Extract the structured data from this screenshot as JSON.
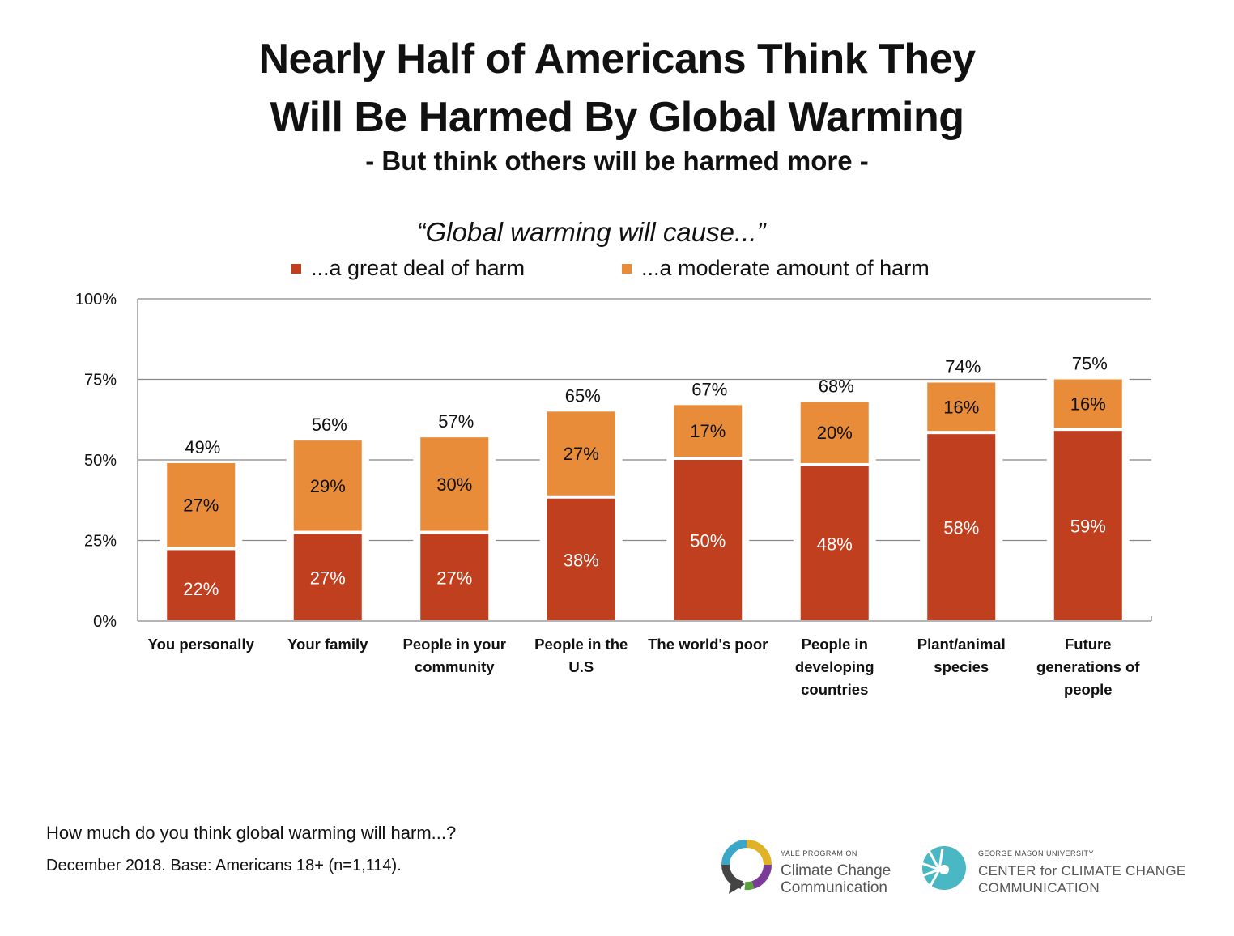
{
  "title_line1": "Nearly Half of Americans Think They",
  "title_line2": "Will Be Harmed By Global Warming",
  "subtitle": "- But think others will be harmed more -",
  "footnote_question": "How much do you think global warming will harm...?",
  "footnote_base": "December 2018. Base: Americans 18+ (n=1,114).",
  "logos": {
    "yale_small": "YALE PROGRAM ON",
    "yale_line1": "Climate Change",
    "yale_line2": "Communication",
    "gmu_small": "GEORGE MASON UNIVERSITY",
    "gmu_line1": "CENTER for CLIMATE CHANGE",
    "gmu_line2": "COMMUNICATION"
  },
  "colors": {
    "great_deal": "#bf3f1e",
    "moderate": "#e98c3a",
    "grid": "#888888",
    "text": "#111111"
  },
  "chart_data": {
    "type": "bar",
    "stacked": true,
    "title": "“Global warming will cause...”",
    "categories": [
      [
        "You personally"
      ],
      [
        "Your family"
      ],
      [
        "People in your",
        "community"
      ],
      [
        "People in the",
        "U.S"
      ],
      [
        "The world's poor"
      ],
      [
        "People in",
        "developing",
        "countries"
      ],
      [
        "Plant/animal",
        "species"
      ],
      [
        "Future",
        "generations of",
        "people"
      ]
    ],
    "series": [
      {
        "name": "...a great deal of harm",
        "values": [
          22,
          27,
          27,
          38,
          50,
          48,
          58,
          59
        ],
        "labels": [
          "22%",
          "27%",
          "27%",
          "38%",
          "50%",
          "48%",
          "58%",
          "59%"
        ]
      },
      {
        "name": "...a moderate amount of harm",
        "values": [
          27,
          29,
          30,
          27,
          17,
          20,
          16,
          16
        ],
        "labels": [
          "27%",
          "29%",
          "30%",
          "27%",
          "17%",
          "20%",
          "16%",
          "16%"
        ]
      }
    ],
    "totals": [
      49,
      56,
      57,
      65,
      67,
      68,
      74,
      75
    ],
    "total_labels": [
      "49%",
      "56%",
      "57%",
      "65%",
      "67%",
      "68%",
      "74%",
      "75%"
    ],
    "ylim": [
      0,
      100
    ],
    "yticks": [
      0,
      25,
      50,
      75,
      100
    ],
    "ytick_labels": [
      "0%",
      "25%",
      "50%",
      "75%",
      "100%"
    ],
    "xlabel": "",
    "ylabel": "",
    "grid": true,
    "legend_position": "top"
  }
}
